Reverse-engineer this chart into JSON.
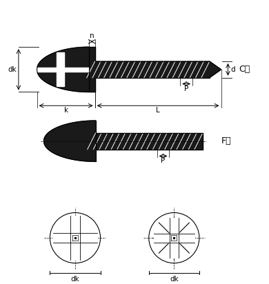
{
  "bg_color": "#ffffff",
  "line_color": "#000000",
  "screw_fill": "#1a1a1a",
  "label_C": "C型",
  "label_F": "F型",
  "label_dk": "dk",
  "label_d": "d",
  "label_n": "n",
  "label_k": "k",
  "label_L": "L",
  "label_P": "P"
}
